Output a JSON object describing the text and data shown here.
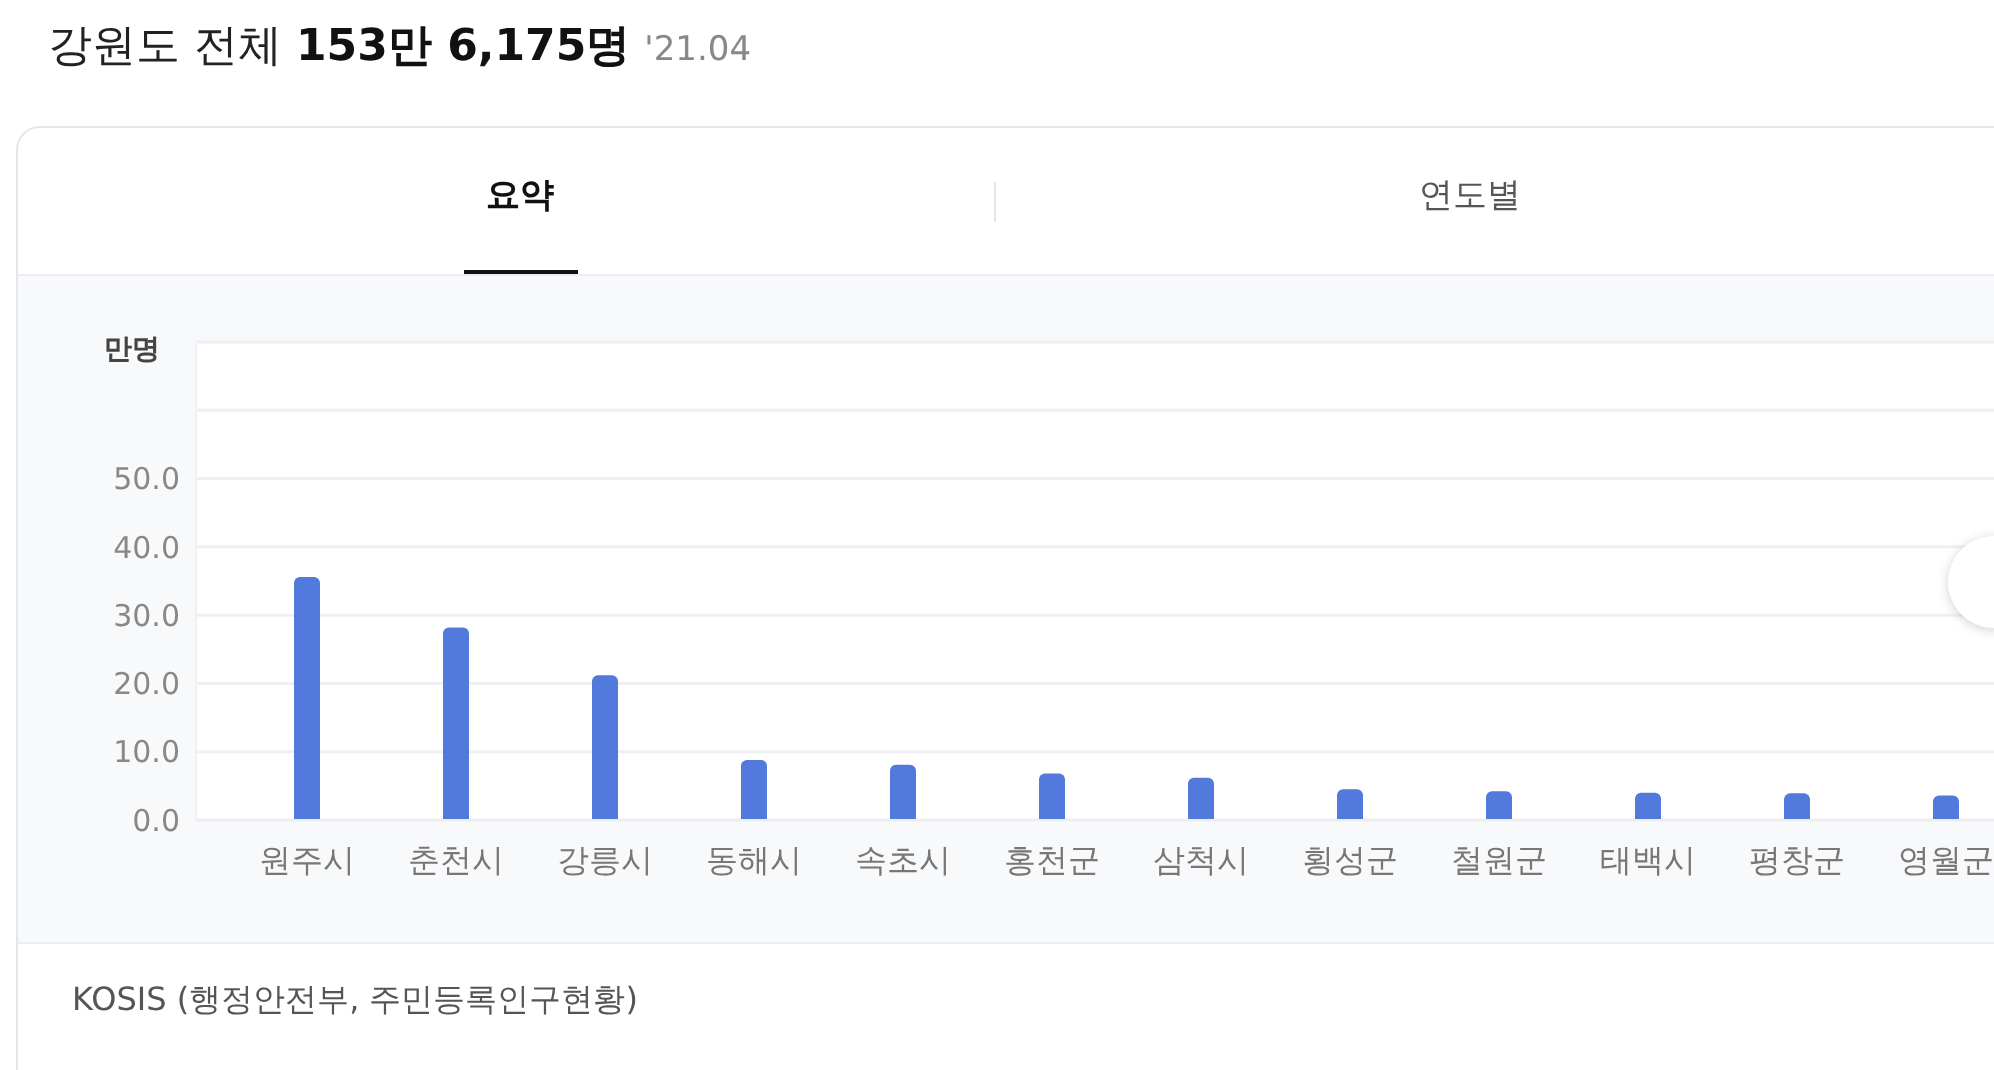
{
  "chart_data": {
    "type": "bar",
    "title": "강원도 전체",
    "subtitle": "153만 6,175명",
    "ylabel": "만명",
    "annotations": [
      "'21.04",
      "요약",
      "연도별",
      "KOSIS (행정안전부, 주민등록인구현황)"
    ],
    "categories": [
      "원주시",
      "춘천시",
      "강릉시",
      "동해시",
      "속초시",
      "홍천군",
      "삼척시",
      "횡성군",
      "철원군",
      "태백시",
      "평창군",
      "영월군"
    ],
    "values": [
      35.6,
      28.2,
      21.2,
      8.8,
      8.1,
      6.8,
      6.2,
      4.5,
      4.2,
      4.0,
      3.9,
      3.6
    ],
    "color": "#5279dc",
    "ylim": [
      0,
      70
    ],
    "yticks": [
      {
        "value": 0,
        "label": "0.0"
      },
      {
        "value": 10,
        "label": "10.0"
      },
      {
        "value": 20,
        "label": "20.0"
      },
      {
        "value": 30,
        "label": "30.0"
      },
      {
        "value": 40,
        "label": "40.0"
      },
      {
        "value": 50,
        "label": "50.0"
      },
      {
        "value": 60,
        "label": null
      },
      {
        "value": 70,
        "label": null
      }
    ],
    "grid": "y"
  }
}
